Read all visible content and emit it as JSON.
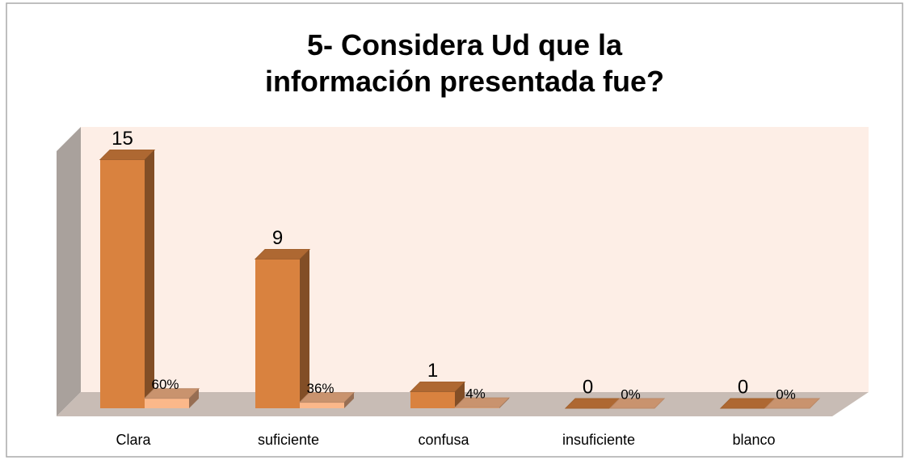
{
  "chart_data": {
    "type": "bar3d",
    "title": "5- Considera Ud que la información presentada fue?",
    "categories": [
      "Clara",
      "suficiente",
      "confusa",
      "insuficiente",
      "blanco"
    ],
    "series": [
      {
        "color": "#d9823f",
        "values": [
          15,
          9,
          1,
          0,
          0
        ]
      },
      {
        "color": "#fbb88a",
        "axis": "y2",
        "values": [
          60,
          36,
          4,
          0,
          0
        ],
        "value_labels": [
          "60%",
          "36%",
          "4%",
          "0%",
          "0%"
        ]
      }
    ],
    "ylim": [
      0,
      16
    ],
    "y2lim": [
      0,
      1600
    ]
  }
}
